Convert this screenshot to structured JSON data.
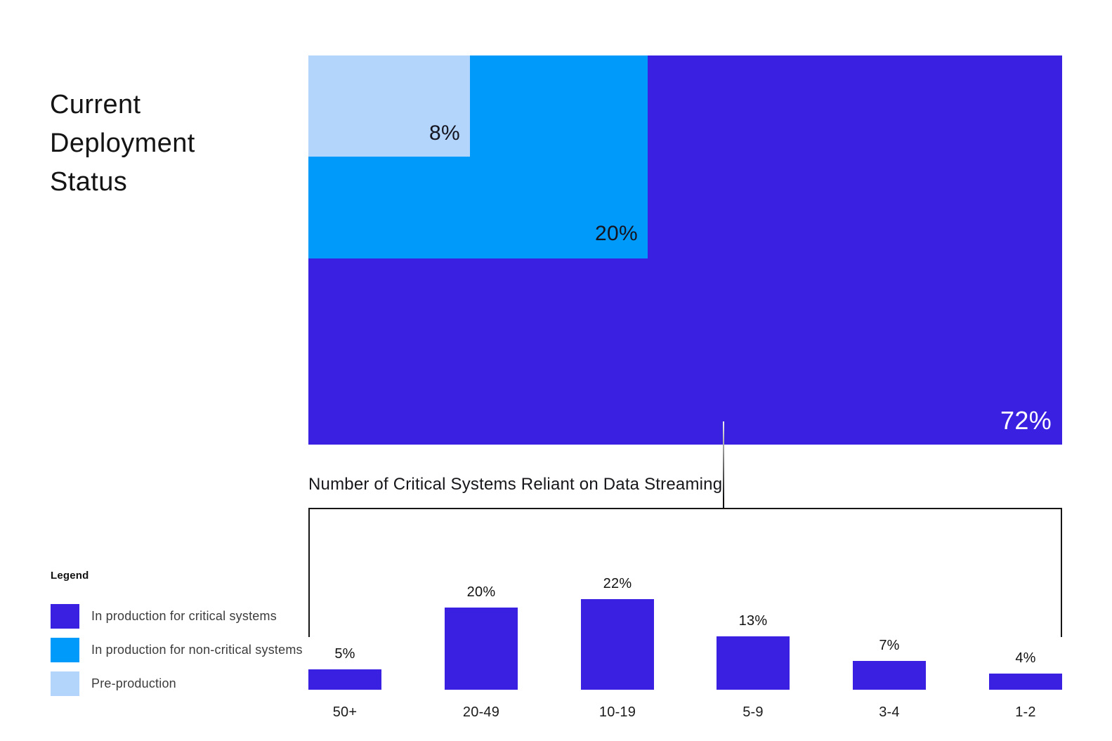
{
  "title": {
    "lines": [
      "Current",
      "Deployment",
      "Status"
    ]
  },
  "colors": {
    "critical": "#3A21E2",
    "non_critical": "#009AFB",
    "pre_production": "#B3D5FC",
    "text_primary": "#141414",
    "text_secondary": "#3C3C3C",
    "label_on_dark": "#FFFFFF",
    "line": "#161616"
  },
  "chart_data": [
    {
      "type": "treemap",
      "title": "Current Deployment Status",
      "unit": "%",
      "segments": [
        {
          "name": "In production for critical systems",
          "value": 72,
          "display": "72%"
        },
        {
          "name": "In production for non-critical systems",
          "value": 20,
          "display": "20%"
        },
        {
          "name": "Pre-production",
          "value": 8,
          "display": "8%"
        }
      ]
    },
    {
      "type": "bar",
      "title": "Number of Critical Systems Reliant on Data Streaming",
      "categories": [
        "50+",
        "20-49",
        "10-19",
        "5-9",
        "3-4",
        "1-2"
      ],
      "values": [
        5,
        20,
        22,
        13,
        7,
        4
      ],
      "value_labels": [
        "5%",
        "20%",
        "22%",
        "13%",
        "7%",
        "4%"
      ],
      "xlabel": "",
      "ylabel": "",
      "ylim": [
        0,
        22
      ],
      "grid": false,
      "legend_position": "left-bottom"
    }
  ],
  "legend": {
    "title": "Legend",
    "items": [
      {
        "label": "In production for critical systems",
        "color_key": "critical"
      },
      {
        "label": "In production for non-critical systems",
        "color_key": "non_critical"
      },
      {
        "label": "Pre-production",
        "color_key": "pre_production"
      }
    ]
  }
}
